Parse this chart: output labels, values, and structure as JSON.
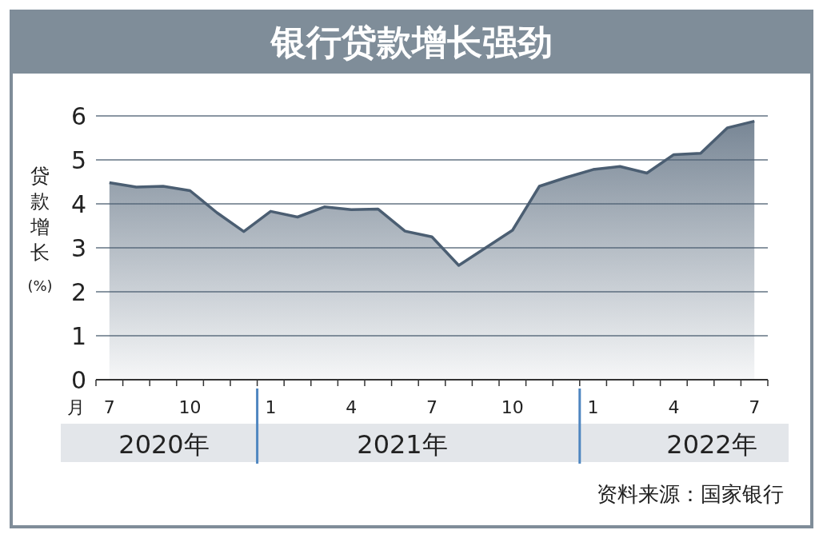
{
  "chart_data": {
    "type": "area",
    "title": "银行贷款增长强劲",
    "ylabel": "贷款增长(%)",
    "categories": [
      "7",
      null,
      null,
      "10",
      null,
      null,
      "1",
      null,
      null,
      "4",
      null,
      null,
      "7",
      null,
      null,
      "10",
      null,
      null,
      "1",
      null,
      null,
      "4",
      null,
      null,
      "7"
    ],
    "series": [
      {
        "color": "#4b5e72",
        "values": [
          4.48,
          4.38,
          4.4,
          4.3,
          3.8,
          3.37,
          3.83,
          3.7,
          3.93,
          3.87,
          3.88,
          3.38,
          3.25,
          2.6,
          3.0,
          3.4,
          4.4,
          4.6,
          4.78,
          4.85,
          4.7,
          5.12,
          5.15,
          5.73,
          5.88
        ]
      }
    ],
    "ylim": [
      0,
      6
    ],
    "yticks": [
      0,
      1,
      2,
      3,
      4,
      5,
      6
    ],
    "grid": "y",
    "annotations": [
      "月",
      "2020年",
      "2021年",
      "2022年",
      "资料来源：国家银行"
    ]
  }
}
